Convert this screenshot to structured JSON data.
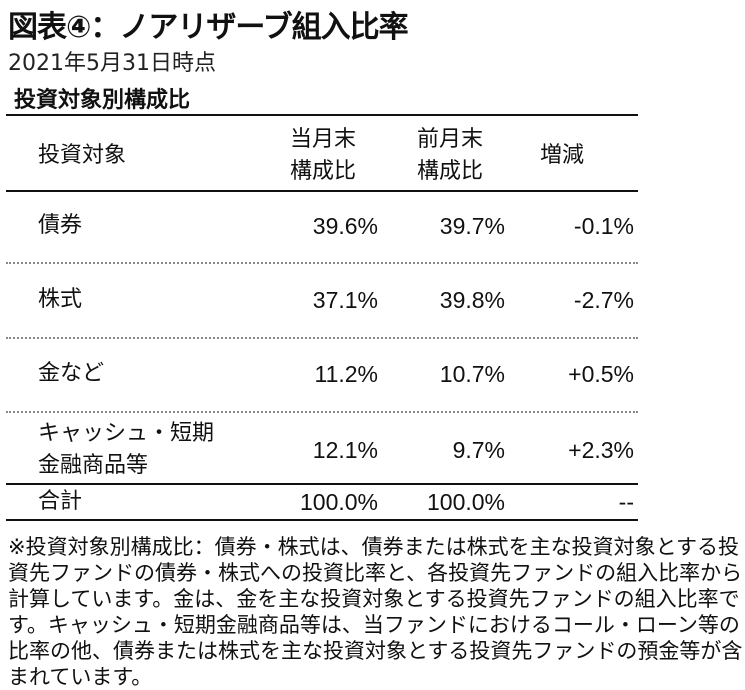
{
  "title": "図表④：ノアリザーブ組入比率",
  "date": "2021年5月31日時点",
  "section_title": "投資対象別構成比",
  "table": {
    "headers": {
      "target": "投資対象",
      "current": [
        "当月末",
        "構成比"
      ],
      "previous": [
        "前月末",
        "構成比"
      ],
      "change": "増減"
    },
    "rows": [
      {
        "label": [
          "債券"
        ],
        "current": "39.6%",
        "previous": "39.7%",
        "change": "-0.1%"
      },
      {
        "label": [
          "株式"
        ],
        "current": "37.1%",
        "previous": "39.8%",
        "change": "-2.7%"
      },
      {
        "label": [
          "金など"
        ],
        "current": "11.2%",
        "previous": "10.7%",
        "change": "+0.5%"
      },
      {
        "label": [
          "キャッシュ・短期",
          "金融商品等"
        ],
        "current": "12.1%",
        "previous": "9.7%",
        "change": "+2.3%"
      }
    ],
    "total": {
      "label": "合計",
      "current": "100.0%",
      "previous": "100.0%",
      "change": "--"
    }
  },
  "note": "※投資対象別構成比：債券・株式は、債券または株式を主な投資対象とする投資先ファンドの債券・株式への投資比率と、各投資先ファンドの組入比率から計算しています。金は、金を主な投資対象とする投資先ファンドの組入比率です。キャッシュ・短期金融商品等は、当ファンドにおけるコール・ローン等の比率の他、債券または株式を主な投資対象とする投資先ファンドの預金等が含まれています。"
}
